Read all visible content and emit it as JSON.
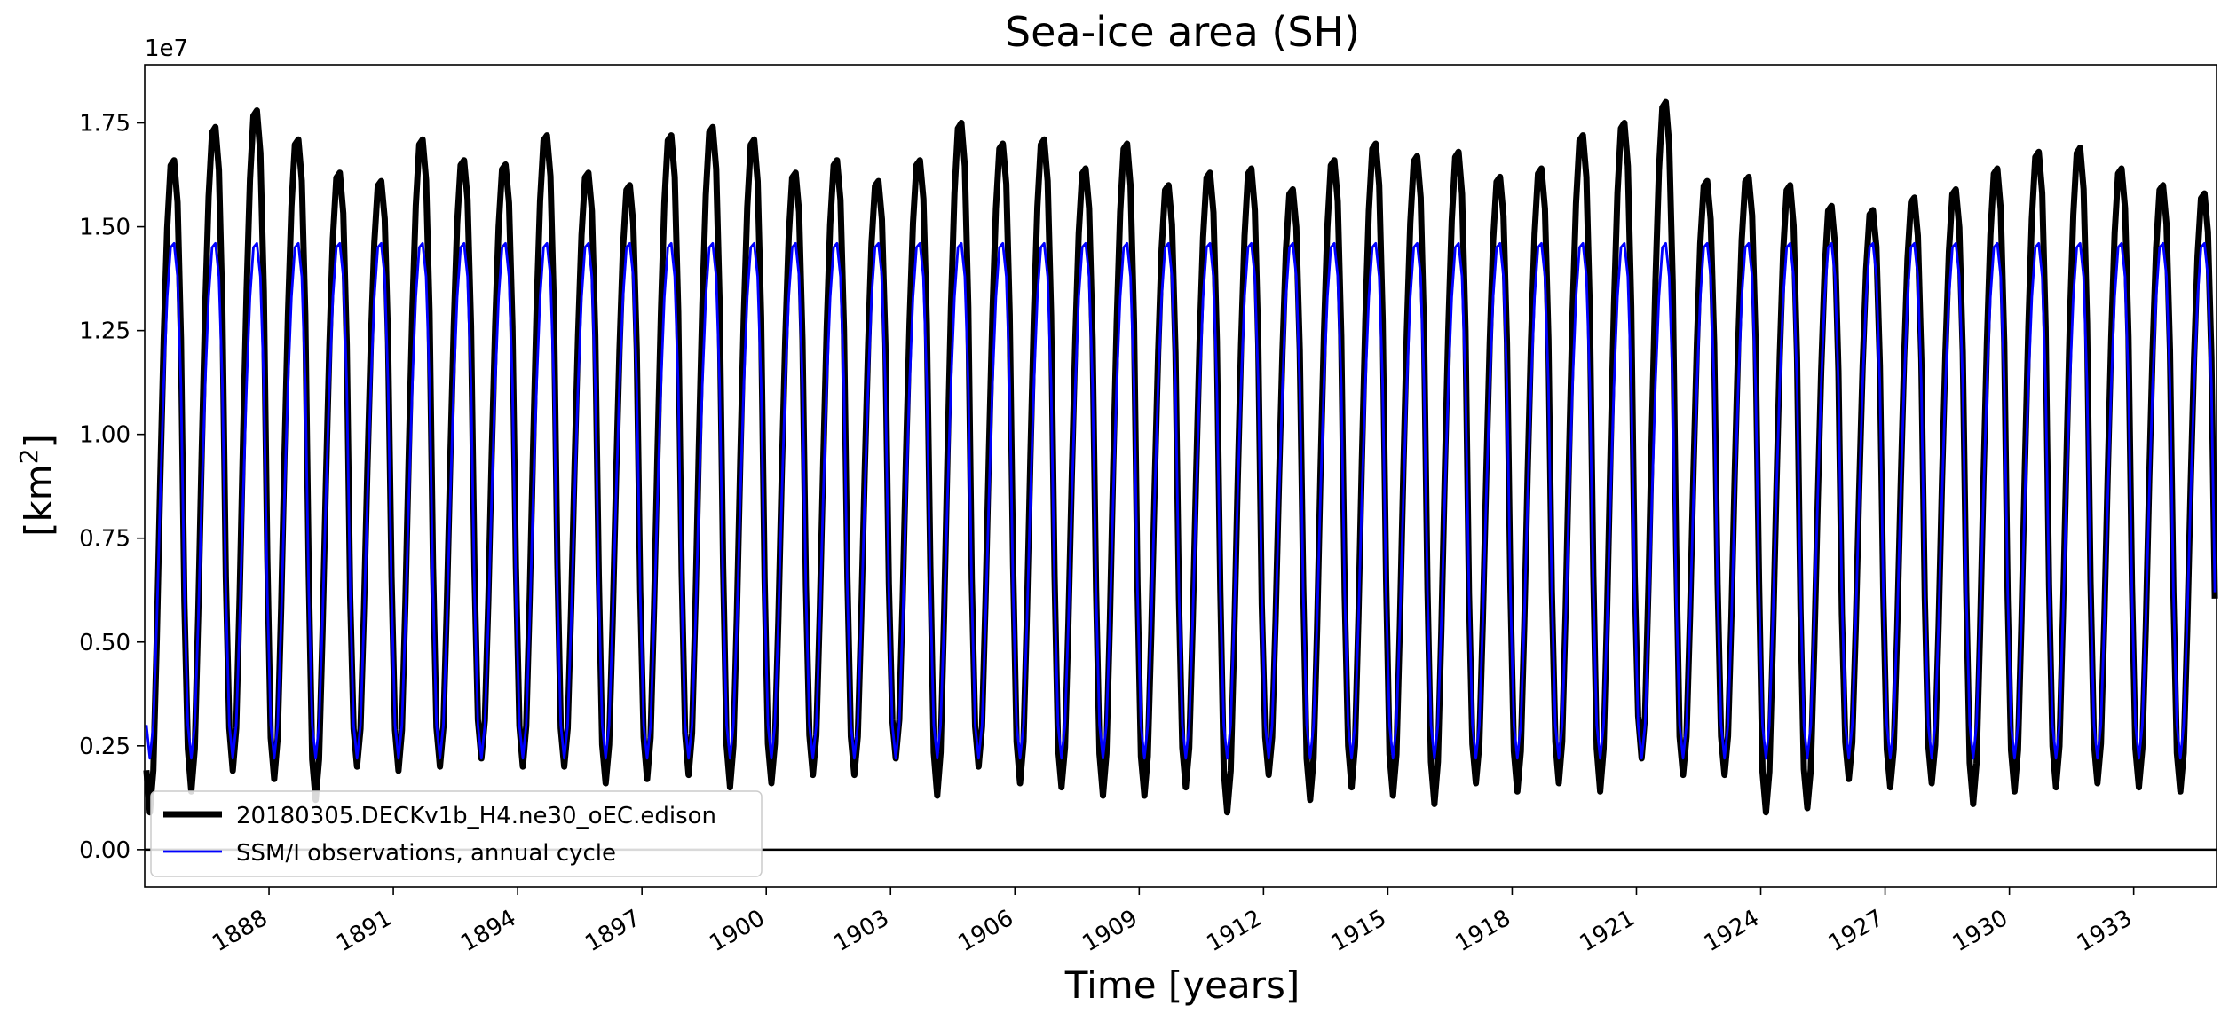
{
  "chart_data": {
    "type": "line",
    "title": "Sea-ice area (SH)",
    "xlabel": "Time [years]",
    "ylabel": "[km",
    "ylabel_sup": "2",
    "ylabel_end": "]",
    "y_offset_label": "1e7",
    "xlim": [
      1885.0,
      1935.0
    ],
    "ylim": [
      -0.09,
      1.89
    ],
    "y_ticks": [
      0.0,
      0.25,
      0.5,
      0.75,
      1.0,
      1.25,
      1.5,
      1.75
    ],
    "y_tick_labels": [
      "0.00",
      "0.25",
      "0.50",
      "0.75",
      "1.00",
      "1.25",
      "1.50",
      "1.75"
    ],
    "x_ticks": [
      1888,
      1891,
      1894,
      1897,
      1900,
      1903,
      1906,
      1909,
      1912,
      1915,
      1918,
      1921,
      1924,
      1927,
      1930,
      1933
    ],
    "x_tick_labels": [
      "1888",
      "1891",
      "1894",
      "1897",
      "1900",
      "1903",
      "1906",
      "1909",
      "1912",
      "1915",
      "1918",
      "1921",
      "1924",
      "1927",
      "1930",
      "1933"
    ],
    "grid": false,
    "legend_position": "lower-left",
    "series": [
      {
        "name": "20180305.DECKv1b_H4.ne30_oEC.edison",
        "color": "#000000",
        "start_year": 1885,
        "annual_max": [
          1.66,
          1.74,
          1.78,
          1.71,
          1.63,
          1.61,
          1.71,
          1.66,
          1.65,
          1.72,
          1.63,
          1.6,
          1.72,
          1.74,
          1.71,
          1.63,
          1.66,
          1.61,
          1.66,
          1.75,
          1.7,
          1.71,
          1.64,
          1.7,
          1.6,
          1.63,
          1.64,
          1.59,
          1.66,
          1.7,
          1.67,
          1.68,
          1.62,
          1.64,
          1.72,
          1.75,
          1.8,
          1.61,
          1.62,
          1.6,
          1.55,
          1.54,
          1.57,
          1.59,
          1.64,
          1.68,
          1.69,
          1.64,
          1.6,
          1.58
        ],
        "annual_min": [
          0.09,
          0.14,
          0.19,
          0.17,
          0.12,
          0.2,
          0.19,
          0.2,
          0.22,
          0.2,
          0.2,
          0.16,
          0.17,
          0.18,
          0.15,
          0.16,
          0.18,
          0.18,
          0.22,
          0.13,
          0.2,
          0.16,
          0.15,
          0.13,
          0.13,
          0.15,
          0.09,
          0.18,
          0.12,
          0.15,
          0.13,
          0.11,
          0.16,
          0.14,
          0.16,
          0.14,
          0.22,
          0.18,
          0.18,
          0.09,
          0.1,
          0.17,
          0.15,
          0.16,
          0.11,
          0.14,
          0.15,
          0.16,
          0.15,
          0.14
        ]
      },
      {
        "name": "SSM/I observations, annual cycle",
        "color": "#0000ff",
        "monthly_climatology": [
          0.3,
          0.22,
          0.3,
          0.55,
          0.85,
          1.12,
          1.33,
          1.45,
          1.46,
          1.38,
          1.12,
          0.62
        ]
      }
    ],
    "reference_line": {
      "y": 0.0,
      "color": "#000000"
    }
  }
}
